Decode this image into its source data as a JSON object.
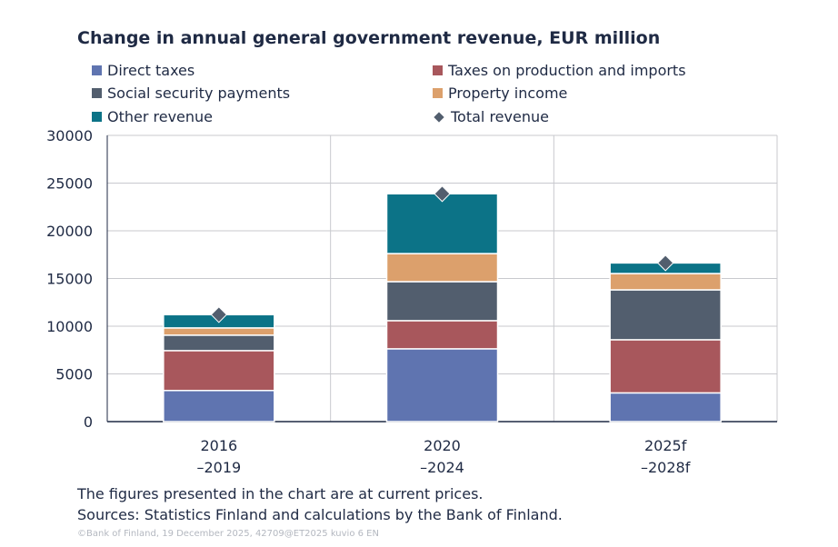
{
  "chart_data": {
    "type": "bar",
    "stacked": true,
    "title": "Change in annual general government revenue, EUR million",
    "categories": [
      [
        "2016",
        "–2019"
      ],
      [
        "2020",
        "–2024"
      ],
      [
        "2025f",
        "–2028f"
      ]
    ],
    "ylim": [
      0,
      30000
    ],
    "yticks": [
      "0",
      "5000",
      "10000",
      "15000",
      "20000",
      "25000",
      "30000"
    ],
    "grid": true,
    "legend_placement": "top",
    "series": [
      {
        "name": "Direct taxes",
        "color": "#5f74b0",
        "values": [
          3260,
          7630,
          3010
        ]
      },
      {
        "name": "Taxes on production and imports",
        "color": "#a8575c",
        "values": [
          4180,
          2950,
          5570
        ]
      },
      {
        "name": "Social security payments",
        "color": "#525e6e",
        "values": [
          1620,
          4090,
          5230
        ]
      },
      {
        "name": "Property income",
        "color": "#dca06c",
        "values": [
          760,
          2940,
          1710
        ]
      },
      {
        "name": "Other revenue",
        "color": "#0c7387",
        "values": [
          1390,
          6270,
          1110
        ]
      }
    ],
    "total": {
      "name": "Total revenue",
      "color": "#525e6e",
      "marker": "diamond",
      "values": [
        11210,
        23880,
        16630
      ]
    }
  },
  "notes": {
    "prices": "The figures presented in the chart are at current prices.",
    "sources": "Sources: Statistics Finland and calculations by the Bank of Finland.",
    "copyright": "©Bank of Finland, 19 December 2025, 42709@ET2025 kuvio 6 EN"
  }
}
